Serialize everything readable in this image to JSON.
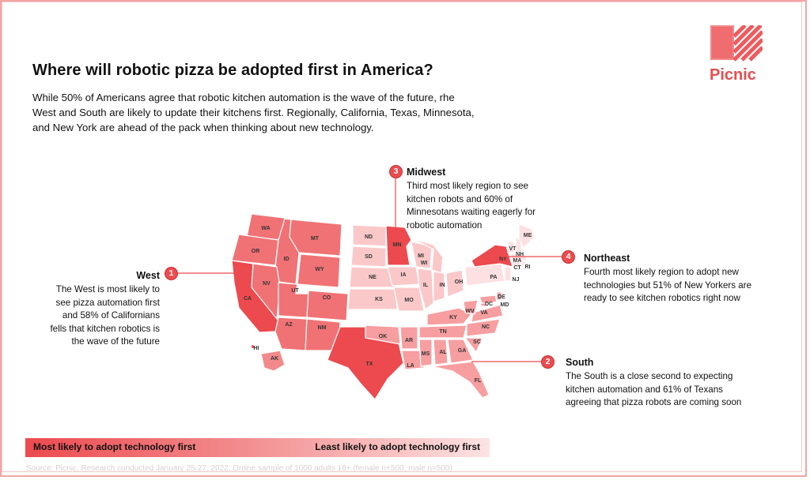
{
  "title": "Where will robotic pizza be adopted first in America?",
  "intro": "While 50% of Americans agree that robotic kitchen automation is the wave of the future, rhe West and South are likely to update their kitchens first. Regionally, California, Texas, Minnesota, and New York are ahead of the pack when thinking about new technology.",
  "logo": {
    "wordmark": "Picnic",
    "brand_color": "#e84c4f"
  },
  "callouts": {
    "west": {
      "rank": "1",
      "heading": "West",
      "body": "The West is most likely to see pizza automation first and 58% of Californians fells that kitchen robotics is the wave of the future"
    },
    "south": {
      "rank": "2",
      "heading": "South",
      "body": "The South is a close second to expecting kitchen automation and 61% of Texans agreeing that pizza robots are coming soon"
    },
    "midwest": {
      "rank": "3",
      "heading": "Midwest",
      "body": "Third most likely region to see kitchen robots and 60% of Minnesotans waiting eagerly for robotic automation"
    },
    "northeast": {
      "rank": "4",
      "heading": "Northeast",
      "body": "Fourth most likely region to adopt new technologies but 51% of New Yorkers are ready to see kitchen robotics right now"
    }
  },
  "legend": {
    "left": "Most likely to adopt technology first",
    "right": "Least likely to adopt technology first"
  },
  "source": "Source: Picnic.     Research conducted January 25-27, 2022. Online sample of 1000 adults 18+ (female n+500, male n=500)",
  "colors": {
    "highlight": "#ec4a4e",
    "west": "#f07275",
    "south": "#f79ea0",
    "midwest": "#fbc8c9",
    "northeast": "#fde1e2"
  },
  "states": {
    "WA": "WA",
    "OR": "OR",
    "CA": "CA",
    "ID": "ID",
    "NV": "NV",
    "MT": "MT",
    "WY": "WY",
    "UT": "UT",
    "CO": "CO",
    "AZ": "AZ",
    "NM": "NM",
    "AK": "AK",
    "HI": "HI",
    "ND": "ND",
    "SD": "SD",
    "NE": "NE",
    "KS": "KS",
    "MN": "MN",
    "IA": "IA",
    "MO": "MO",
    "WI": "WI",
    "IL": "IL",
    "MI": "MI",
    "IN": "IN",
    "OH": "OH",
    "TX": "TX",
    "OK": "OK",
    "AR": "AR",
    "LA": "LA",
    "MS": "MS",
    "AL": "AL",
    "TN": "TN",
    "KY": "KY",
    "GA": "GA",
    "FL": "FL",
    "SC": "SC",
    "NC": "NC",
    "VA": "VA",
    "WV": "WV",
    "DC": "DC",
    "MD": "MD",
    "DE": "DE",
    "PA": "PA",
    "NY": "NY",
    "NJ": "NJ",
    "CT": "CT",
    "RI": "RI",
    "MA": "MA",
    "VT": "VT",
    "NH": "NH",
    "ME": "ME"
  }
}
